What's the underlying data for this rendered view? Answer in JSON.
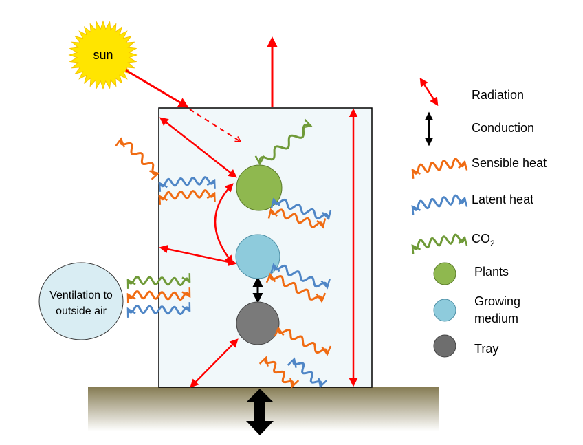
{
  "sun": {
    "label": "sun"
  },
  "ventilation": {
    "line1": "Ventilation to",
    "line2": "outside air"
  },
  "legend": {
    "radiation": "Radiation",
    "conduction": "Conduction",
    "sensible_heat": "Sensible heat",
    "latent_heat": "Latent heat",
    "co2": "CO",
    "co2_sub": "2",
    "plants": "Plants",
    "growing_medium_1": "Growing",
    "growing_medium_2": "medium",
    "tray": "Tray"
  },
  "colors": {
    "radiation": "#ff0000",
    "conduction": "#000000",
    "sensible": "#f06b12",
    "latent": "#4f86c6",
    "co2": "#6f9a38",
    "plants": "#8fb84f",
    "growing_medium": "#8ecbdc",
    "tray": "#7a7a7a",
    "container": "#f1f8fa",
    "ground_top": "#867c54",
    "ventilation_fill": "#d9edf3",
    "sun": "#ffe500"
  }
}
